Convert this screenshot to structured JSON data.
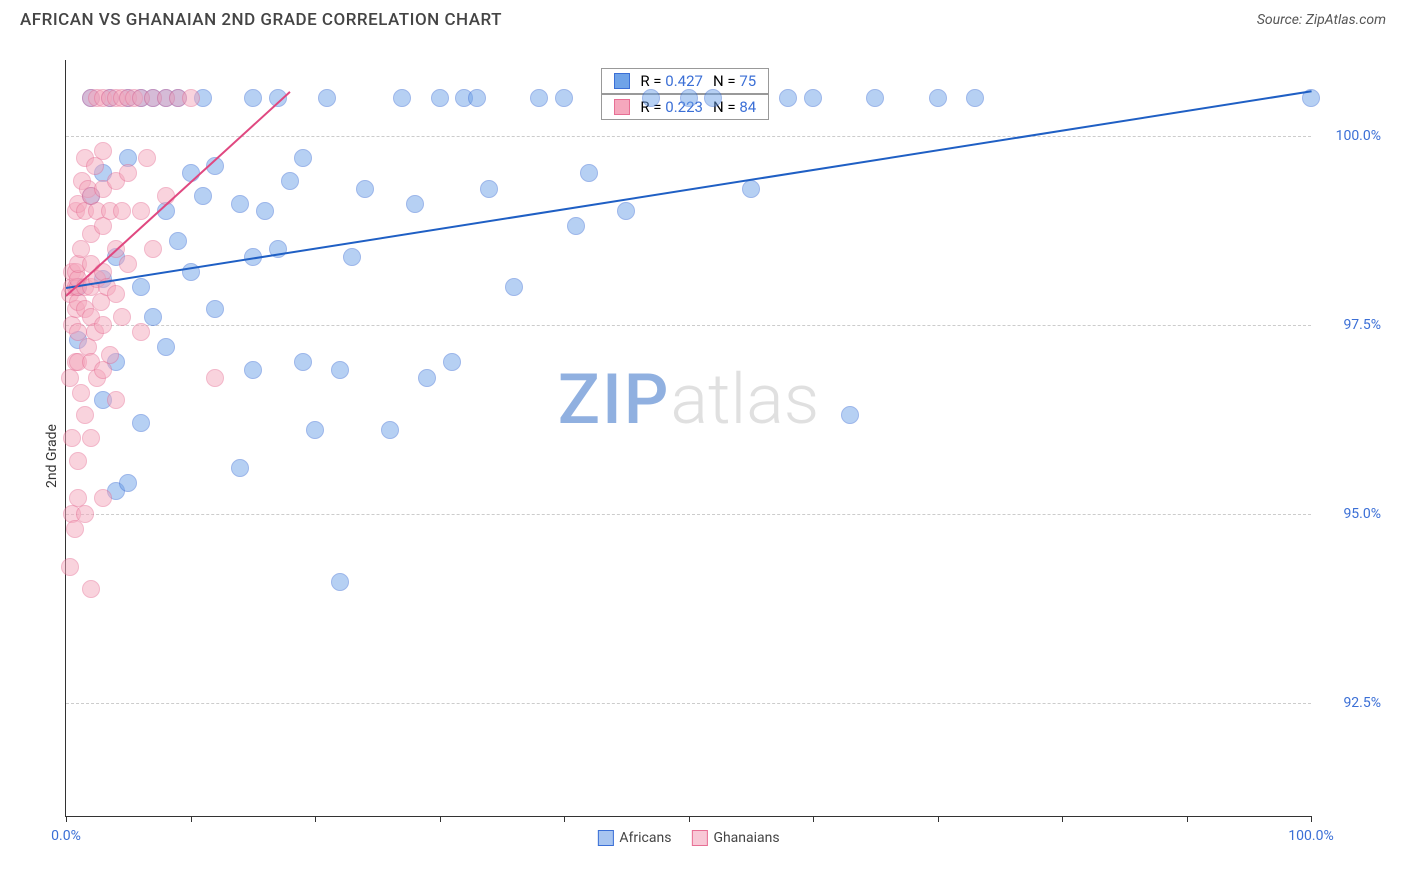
{
  "title": "AFRICAN VS GHANAIAN 2ND GRADE CORRELATION CHART",
  "source": "Source: ZipAtlas.com",
  "ylabel": "2nd Grade",
  "watermark_bold": "ZIP",
  "watermark_light": "atlas",
  "chart": {
    "type": "scatter",
    "background_color": "#ffffff",
    "grid_color": "#cccccc",
    "axis_color": "#333333",
    "tick_label_color": "#3b6fd6",
    "tick_fontsize": 14,
    "xlim": [
      0,
      100
    ],
    "ylim": [
      91,
      101
    ],
    "yticks": [
      {
        "v": 92.5,
        "label": "92.5%"
      },
      {
        "v": 95.0,
        "label": "95.0%"
      },
      {
        "v": 97.5,
        "label": "97.5%"
      },
      {
        "v": 100.0,
        "label": "100.0%"
      }
    ],
    "xticks_major": [
      0,
      50,
      100
    ],
    "xticks_minor": [
      10,
      20,
      30,
      40,
      60,
      70,
      80,
      90
    ],
    "xtick_labels": [
      {
        "v": 0,
        "label": "0.0%"
      },
      {
        "v": 100,
        "label": "100.0%"
      }
    ],
    "marker_radius": 9,
    "marker_opacity": 0.5,
    "line_width": 2,
    "series": [
      {
        "name": "Africans",
        "fill": "#6fa3e8",
        "stroke": "#3b6fd6",
        "R": "0.427",
        "N": "75",
        "trend": {
          "x1": 0,
          "y1": 98.0,
          "x2": 100,
          "y2": 100.6,
          "color": "#1f5fc4"
        },
        "points": [
          [
            1,
            97.3
          ],
          [
            1,
            98.0
          ],
          [
            2,
            99.2
          ],
          [
            2,
            100.5
          ],
          [
            3,
            96.5
          ],
          [
            3,
            98.1
          ],
          [
            3,
            99.5
          ],
          [
            3.5,
            100.5
          ],
          [
            4,
            95.3
          ],
          [
            4,
            97.0
          ],
          [
            4,
            98.4
          ],
          [
            5,
            95.4
          ],
          [
            5,
            99.7
          ],
          [
            5,
            100.5
          ],
          [
            6,
            96.2
          ],
          [
            6,
            98.0
          ],
          [
            6,
            100.5
          ],
          [
            7,
            97.6
          ],
          [
            7,
            100.5
          ],
          [
            8,
            97.2
          ],
          [
            8,
            99.0
          ],
          [
            8,
            100.5
          ],
          [
            9,
            98.6
          ],
          [
            9,
            100.5
          ],
          [
            10,
            99.5
          ],
          [
            10,
            98.2
          ],
          [
            11,
            99.2
          ],
          [
            11,
            100.5
          ],
          [
            12,
            97.7
          ],
          [
            12,
            99.6
          ],
          [
            14,
            95.6
          ],
          [
            14,
            99.1
          ],
          [
            15,
            96.9
          ],
          [
            15,
            98.4
          ],
          [
            15,
            100.5
          ],
          [
            16,
            99.0
          ],
          [
            17,
            98.5
          ],
          [
            17,
            100.5
          ],
          [
            18,
            99.4
          ],
          [
            19,
            97.0
          ],
          [
            19,
            99.7
          ],
          [
            20,
            96.1
          ],
          [
            21,
            100.5
          ],
          [
            22,
            94.1
          ],
          [
            22,
            96.9
          ],
          [
            23,
            98.4
          ],
          [
            24,
            99.3
          ],
          [
            26,
            96.1
          ],
          [
            27,
            100.5
          ],
          [
            28,
            99.1
          ],
          [
            29,
            96.8
          ],
          [
            30,
            100.5
          ],
          [
            31,
            97.0
          ],
          [
            32,
            100.5
          ],
          [
            33,
            100.5
          ],
          [
            34,
            99.3
          ],
          [
            36,
            98.0
          ],
          [
            38,
            100.5
          ],
          [
            40,
            100.5
          ],
          [
            41,
            98.8
          ],
          [
            42,
            99.5
          ],
          [
            45,
            99.0
          ],
          [
            47,
            100.5
          ],
          [
            50,
            100.5
          ],
          [
            52,
            100.5
          ],
          [
            55,
            99.3
          ],
          [
            58,
            100.5
          ],
          [
            60,
            100.5
          ],
          [
            63,
            96.3
          ],
          [
            65,
            100.5
          ],
          [
            70,
            100.5
          ],
          [
            73,
            100.5
          ],
          [
            100,
            100.5
          ]
        ]
      },
      {
        "name": "Ghanaians",
        "fill": "#f5a8bd",
        "stroke": "#e76f94",
        "R": "0.223",
        "N": "84",
        "trend": {
          "x1": 0,
          "y1": 97.9,
          "x2": 18,
          "y2": 100.6,
          "color": "#e04880"
        },
        "points": [
          [
            0.3,
            94.3
          ],
          [
            0.3,
            96.8
          ],
          [
            0.3,
            97.9
          ],
          [
            0.5,
            95.0
          ],
          [
            0.5,
            96.0
          ],
          [
            0.5,
            97.5
          ],
          [
            0.5,
            98.0
          ],
          [
            0.5,
            98.2
          ],
          [
            0.7,
            94.8
          ],
          [
            0.8,
            97.0
          ],
          [
            0.8,
            97.7
          ],
          [
            0.8,
            98.0
          ],
          [
            0.8,
            98.2
          ],
          [
            0.8,
            99.0
          ],
          [
            1,
            95.2
          ],
          [
            1,
            95.7
          ],
          [
            1,
            97.0
          ],
          [
            1,
            97.4
          ],
          [
            1,
            97.8
          ],
          [
            1,
            98.0
          ],
          [
            1,
            98.1
          ],
          [
            1,
            98.3
          ],
          [
            1,
            99.1
          ],
          [
            1.2,
            96.6
          ],
          [
            1.2,
            98.5
          ],
          [
            1.3,
            99.4
          ],
          [
            1.5,
            95.0
          ],
          [
            1.5,
            96.3
          ],
          [
            1.5,
            97.7
          ],
          [
            1.5,
            98.0
          ],
          [
            1.5,
            99.0
          ],
          [
            1.5,
            99.7
          ],
          [
            1.8,
            97.2
          ],
          [
            1.8,
            99.3
          ],
          [
            2,
            94.0
          ],
          [
            2,
            96.0
          ],
          [
            2,
            97.0
          ],
          [
            2,
            97.6
          ],
          [
            2,
            98.0
          ],
          [
            2,
            98.3
          ],
          [
            2,
            98.7
          ],
          [
            2,
            99.2
          ],
          [
            2,
            100.5
          ],
          [
            2.3,
            97.4
          ],
          [
            2.3,
            99.6
          ],
          [
            2.5,
            96.8
          ],
          [
            2.5,
            98.1
          ],
          [
            2.5,
            99.0
          ],
          [
            2.5,
            100.5
          ],
          [
            2.8,
            97.8
          ],
          [
            3,
            95.2
          ],
          [
            3,
            96.9
          ],
          [
            3,
            97.5
          ],
          [
            3,
            98.2
          ],
          [
            3,
            98.8
          ],
          [
            3,
            99.3
          ],
          [
            3,
            99.8
          ],
          [
            3,
            100.5
          ],
          [
            3.3,
            98.0
          ],
          [
            3.5,
            97.1
          ],
          [
            3.5,
            99.0
          ],
          [
            3.5,
            100.5
          ],
          [
            4,
            96.5
          ],
          [
            4,
            97.9
          ],
          [
            4,
            98.5
          ],
          [
            4,
            99.4
          ],
          [
            4,
            100.5
          ],
          [
            4.5,
            97.6
          ],
          [
            4.5,
            99.0
          ],
          [
            4.5,
            100.5
          ],
          [
            5,
            98.3
          ],
          [
            5,
            99.5
          ],
          [
            5,
            100.5
          ],
          [
            5.5,
            100.5
          ],
          [
            6,
            97.4
          ],
          [
            6,
            99.0
          ],
          [
            6,
            100.5
          ],
          [
            6.5,
            99.7
          ],
          [
            7,
            98.5
          ],
          [
            7,
            100.5
          ],
          [
            8,
            99.2
          ],
          [
            8,
            100.5
          ],
          [
            9,
            100.5
          ],
          [
            10,
            100.5
          ],
          [
            12,
            96.8
          ]
        ]
      }
    ],
    "legend": {
      "items": [
        {
          "label": "Africans",
          "fill": "#a8c5f0",
          "stroke": "#3b6fd6"
        },
        {
          "label": "Ghanaians",
          "fill": "#f8c8d6",
          "stroke": "#e76f94"
        }
      ]
    }
  }
}
